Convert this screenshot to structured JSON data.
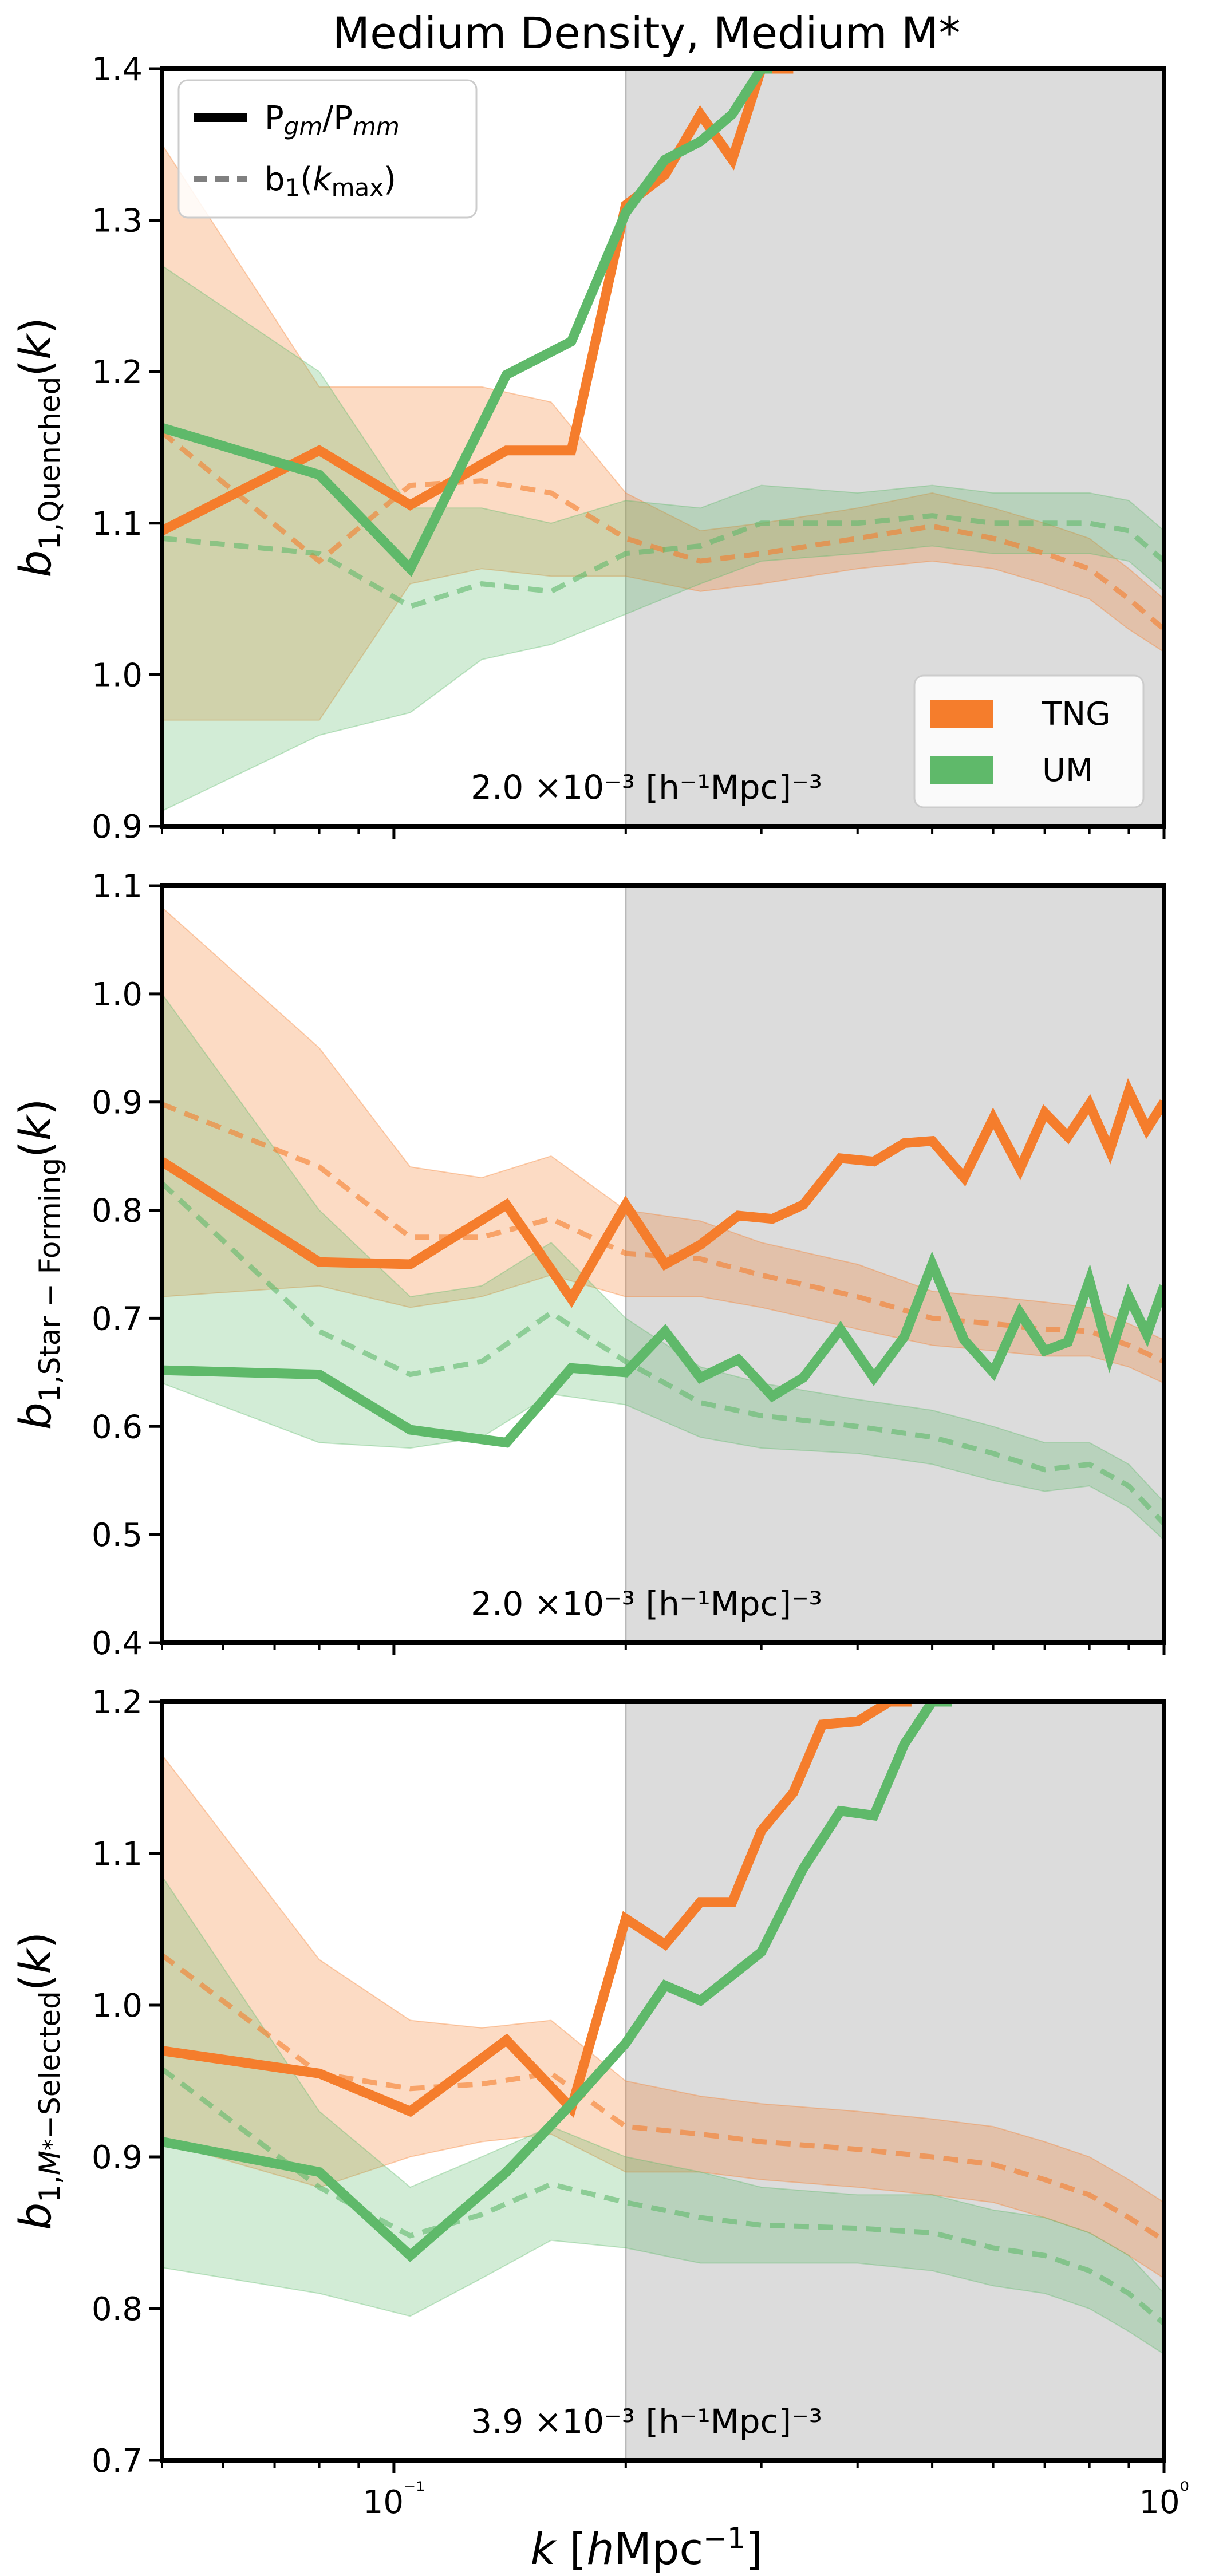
{
  "title": "Medium Density, Medium M*",
  "colors": {
    "tng": "#f57d2c",
    "um": "#5fb96a",
    "shade": "#dcdcdc",
    "axis": "#000000"
  },
  "legend_lines": [
    {
      "label": "Pgm/Pmm",
      "style": "solid"
    },
    {
      "label": "b1(kmax)",
      "style": "dashed"
    }
  ],
  "legend_patches": [
    {
      "label": "TNG",
      "color": "#f57d2c"
    },
    {
      "label": "UM",
      "color": "#5fb96a"
    }
  ],
  "chart_data": [
    {
      "type": "line",
      "panel": "quenched",
      "title": "Medium Density, Medium M*",
      "xlabel": "k [hMpc^-1]",
      "ylabel": "b1,Quenched(k)",
      "xscale": "log",
      "xlim": [
        0.05,
        1.0
      ],
      "ylim": [
        0.9,
        1.4
      ],
      "yticks": [
        "0.9",
        "1.0",
        "1.1",
        "1.2",
        "1.3",
        "1.4"
      ],
      "xticks": [],
      "shaded_region_x": [
        0.2,
        1.0
      ],
      "annotation": "2.0 ×10⁻³ [h⁻¹Mpc]⁻³",
      "series": [
        {
          "name": "TNG Pgm/Pmm",
          "style": "solid",
          "color": "#f57d2c",
          "x": [
            0.05,
            0.08,
            0.105,
            0.14,
            0.17,
            0.2,
            0.225,
            0.25,
            0.275,
            0.3,
            0.33
          ],
          "y": [
            1.095,
            1.148,
            1.112,
            1.148,
            1.148,
            1.31,
            1.33,
            1.37,
            1.34,
            1.4,
            1.4
          ]
        },
        {
          "name": "UM Pgm/Pmm",
          "style": "solid",
          "color": "#5fb96a",
          "x": [
            0.05,
            0.08,
            0.105,
            0.14,
            0.17,
            0.2,
            0.225,
            0.25,
            0.275,
            0.3,
            0.31
          ],
          "y": [
            1.163,
            1.132,
            1.07,
            1.198,
            1.22,
            1.305,
            1.34,
            1.352,
            1.37,
            1.4,
            1.4
          ]
        },
        {
          "name": "TNG b1(kmax)",
          "style": "dashed",
          "color": "#f57d2c",
          "x": [
            0.05,
            0.08,
            0.105,
            0.13,
            0.16,
            0.2,
            0.25,
            0.3,
            0.4,
            0.5,
            0.6,
            0.7,
            0.8,
            0.9,
            1.0
          ],
          "y": [
            1.16,
            1.075,
            1.125,
            1.128,
            1.12,
            1.09,
            1.075,
            1.08,
            1.09,
            1.098,
            1.09,
            1.08,
            1.07,
            1.05,
            1.03
          ],
          "band_lower": [
            0.97,
            0.97,
            1.06,
            1.07,
            1.065,
            1.065,
            1.055,
            1.06,
            1.07,
            1.075,
            1.07,
            1.06,
            1.05,
            1.03,
            1.015
          ],
          "band_upper": [
            1.35,
            1.19,
            1.19,
            1.19,
            1.18,
            1.12,
            1.095,
            1.1,
            1.11,
            1.12,
            1.11,
            1.1,
            1.09,
            1.07,
            1.05
          ]
        },
        {
          "name": "UM b1(kmax)",
          "style": "dashed",
          "color": "#5fb96a",
          "x": [
            0.05,
            0.08,
            0.105,
            0.13,
            0.16,
            0.2,
            0.25,
            0.3,
            0.4,
            0.5,
            0.6,
            0.7,
            0.8,
            0.9,
            1.0
          ],
          "y": [
            1.09,
            1.08,
            1.045,
            1.06,
            1.055,
            1.08,
            1.085,
            1.1,
            1.1,
            1.105,
            1.1,
            1.1,
            1.1,
            1.095,
            1.075
          ],
          "band_lower": [
            0.91,
            0.96,
            0.975,
            1.01,
            1.02,
            1.04,
            1.06,
            1.075,
            1.08,
            1.085,
            1.08,
            1.08,
            1.08,
            1.075,
            1.055
          ],
          "band_upper": [
            1.27,
            1.2,
            1.11,
            1.11,
            1.1,
            1.115,
            1.11,
            1.125,
            1.12,
            1.125,
            1.12,
            1.12,
            1.12,
            1.115,
            1.095
          ]
        }
      ]
    },
    {
      "type": "line",
      "panel": "star-forming",
      "xlabel": "k [hMpc^-1]",
      "ylabel": "b1,Star-Forming(k)",
      "xscale": "log",
      "xlim": [
        0.05,
        1.0
      ],
      "ylim": [
        0.4,
        1.1
      ],
      "yticks": [
        "0.4",
        "0.5",
        "0.6",
        "0.7",
        "0.8",
        "0.9",
        "1.0",
        "1.1"
      ],
      "xticks": [],
      "shaded_region_x": [
        0.2,
        1.0
      ],
      "annotation": "2.0 ×10⁻³ [h⁻¹Mpc]⁻³",
      "series": [
        {
          "name": "TNG Pgm/Pmm",
          "style": "solid",
          "color": "#f57d2c",
          "x": [
            0.05,
            0.08,
            0.105,
            0.14,
            0.17,
            0.2,
            0.225,
            0.25,
            0.28,
            0.31,
            0.34,
            0.38,
            0.42,
            0.46,
            0.5,
            0.55,
            0.6,
            0.65,
            0.7,
            0.75,
            0.8,
            0.85,
            0.9,
            0.95,
            1.0
          ],
          "y": [
            0.845,
            0.752,
            0.75,
            0.805,
            0.718,
            0.805,
            0.75,
            0.768,
            0.795,
            0.792,
            0.805,
            0.848,
            0.845,
            0.862,
            0.864,
            0.83,
            0.885,
            0.838,
            0.89,
            0.868,
            0.898,
            0.855,
            0.91,
            0.875,
            0.9
          ]
        },
        {
          "name": "UM Pgm/Pmm",
          "style": "solid",
          "color": "#5fb96a",
          "x": [
            0.05,
            0.08,
            0.105,
            0.14,
            0.17,
            0.2,
            0.225,
            0.25,
            0.28,
            0.31,
            0.34,
            0.38,
            0.42,
            0.46,
            0.5,
            0.55,
            0.6,
            0.65,
            0.7,
            0.75,
            0.8,
            0.85,
            0.9,
            0.95,
            1.0
          ],
          "y": [
            0.652,
            0.648,
            0.597,
            0.585,
            0.654,
            0.65,
            0.688,
            0.645,
            0.662,
            0.628,
            0.645,
            0.69,
            0.645,
            0.683,
            0.75,
            0.68,
            0.65,
            0.705,
            0.67,
            0.678,
            0.735,
            0.665,
            0.72,
            0.685,
            0.73
          ]
        },
        {
          "name": "TNG b1(kmax)",
          "style": "dashed",
          "color": "#f57d2c",
          "x": [
            0.05,
            0.08,
            0.105,
            0.13,
            0.16,
            0.2,
            0.25,
            0.3,
            0.4,
            0.5,
            0.6,
            0.7,
            0.8,
            0.9,
            1.0
          ],
          "y": [
            0.898,
            0.84,
            0.775,
            0.775,
            0.792,
            0.76,
            0.755,
            0.74,
            0.72,
            0.7,
            0.695,
            0.69,
            0.688,
            0.675,
            0.66
          ],
          "band_lower": [
            0.72,
            0.73,
            0.71,
            0.72,
            0.74,
            0.72,
            0.72,
            0.71,
            0.69,
            0.675,
            0.67,
            0.665,
            0.665,
            0.655,
            0.64
          ],
          "band_upper": [
            1.08,
            0.95,
            0.84,
            0.83,
            0.85,
            0.8,
            0.79,
            0.77,
            0.75,
            0.725,
            0.72,
            0.715,
            0.71,
            0.695,
            0.68
          ]
        },
        {
          "name": "UM b1(kmax)",
          "style": "dashed",
          "color": "#5fb96a",
          "x": [
            0.05,
            0.08,
            0.105,
            0.13,
            0.16,
            0.2,
            0.25,
            0.3,
            0.4,
            0.5,
            0.6,
            0.7,
            0.8,
            0.9,
            1.0
          ],
          "y": [
            0.825,
            0.688,
            0.648,
            0.66,
            0.705,
            0.66,
            0.622,
            0.61,
            0.6,
            0.59,
            0.575,
            0.56,
            0.565,
            0.545,
            0.51
          ],
          "band_lower": [
            0.64,
            0.585,
            0.58,
            0.59,
            0.63,
            0.62,
            0.59,
            0.58,
            0.575,
            0.565,
            0.55,
            0.54,
            0.545,
            0.525,
            0.495
          ],
          "band_upper": [
            1.0,
            0.8,
            0.72,
            0.73,
            0.77,
            0.7,
            0.655,
            0.64,
            0.625,
            0.615,
            0.6,
            0.585,
            0.585,
            0.565,
            0.53
          ]
        }
      ]
    },
    {
      "type": "line",
      "panel": "mstar-selected",
      "xlabel": "k [hMpc^-1]",
      "ylabel": "b1,M*-Selected(k)",
      "xscale": "log",
      "xlim": [
        0.05,
        1.0
      ],
      "ylim": [
        0.7,
        1.2
      ],
      "yticks": [
        "0.7",
        "0.8",
        "0.9",
        "1.0",
        "1.1",
        "1.2"
      ],
      "xticks": [
        "10⁻¹",
        "10⁰"
      ],
      "shaded_region_x": [
        0.2,
        1.0
      ],
      "annotation": "3.9 ×10⁻³ [h⁻¹Mpc]⁻³",
      "series": [
        {
          "name": "TNG Pgm/Pmm",
          "style": "solid",
          "color": "#f57d2c",
          "x": [
            0.05,
            0.08,
            0.105,
            0.14,
            0.17,
            0.2,
            0.225,
            0.25,
            0.275,
            0.3,
            0.33,
            0.36,
            0.4,
            0.44,
            0.47
          ],
          "y": [
            0.97,
            0.955,
            0.93,
            0.977,
            0.932,
            1.057,
            1.04,
            1.068,
            1.068,
            1.115,
            1.14,
            1.185,
            1.187,
            1.2,
            1.2
          ]
        },
        {
          "name": "UM Pgm/Pmm",
          "style": "solid",
          "color": "#5fb96a",
          "x": [
            0.05,
            0.08,
            0.105,
            0.14,
            0.17,
            0.2,
            0.225,
            0.25,
            0.3,
            0.34,
            0.38,
            0.42,
            0.46,
            0.5,
            0.53
          ],
          "y": [
            0.91,
            0.89,
            0.835,
            0.89,
            0.935,
            0.975,
            1.013,
            1.003,
            1.035,
            1.09,
            1.128,
            1.125,
            1.172,
            1.2,
            1.2
          ]
        },
        {
          "name": "TNG b1(kmax)",
          "style": "dashed",
          "color": "#f57d2c",
          "x": [
            0.05,
            0.08,
            0.105,
            0.13,
            0.16,
            0.2,
            0.25,
            0.3,
            0.4,
            0.5,
            0.6,
            0.7,
            0.8,
            0.9,
            1.0
          ],
          "y": [
            1.033,
            0.955,
            0.945,
            0.948,
            0.955,
            0.92,
            0.915,
            0.91,
            0.905,
            0.9,
            0.895,
            0.885,
            0.875,
            0.86,
            0.845
          ],
          "band_lower": [
            0.91,
            0.88,
            0.9,
            0.91,
            0.915,
            0.89,
            0.89,
            0.885,
            0.88,
            0.875,
            0.87,
            0.86,
            0.85,
            0.835,
            0.82
          ],
          "band_upper": [
            1.165,
            1.03,
            0.99,
            0.985,
            0.99,
            0.95,
            0.94,
            0.935,
            0.93,
            0.925,
            0.92,
            0.91,
            0.9,
            0.885,
            0.87
          ]
        },
        {
          "name": "UM b1(kmax)",
          "style": "dashed",
          "color": "#5fb96a",
          "x": [
            0.05,
            0.08,
            0.105,
            0.13,
            0.16,
            0.2,
            0.25,
            0.3,
            0.4,
            0.5,
            0.6,
            0.7,
            0.8,
            0.9,
            1.0
          ],
          "y": [
            0.958,
            0.88,
            0.848,
            0.862,
            0.882,
            0.87,
            0.86,
            0.855,
            0.853,
            0.85,
            0.84,
            0.835,
            0.825,
            0.81,
            0.79
          ],
          "band_lower": [
            0.827,
            0.81,
            0.795,
            0.82,
            0.845,
            0.84,
            0.83,
            0.83,
            0.83,
            0.825,
            0.815,
            0.81,
            0.8,
            0.785,
            0.77
          ],
          "band_upper": [
            1.085,
            0.93,
            0.88,
            0.9,
            0.92,
            0.9,
            0.89,
            0.88,
            0.875,
            0.875,
            0.865,
            0.86,
            0.85,
            0.835,
            0.81
          ]
        }
      ]
    }
  ]
}
